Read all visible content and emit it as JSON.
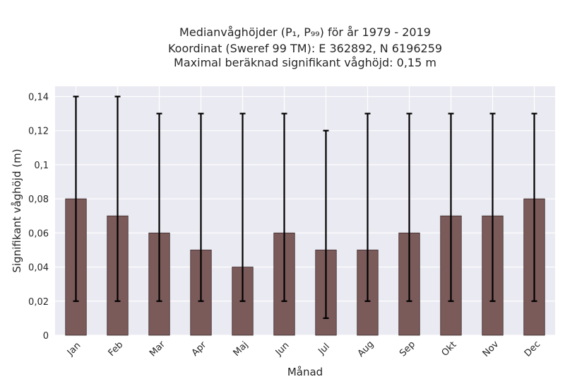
{
  "chart_data": {
    "type": "bar",
    "title_lines": [
      "Medianvåghöjder (P₁, P₉₉) för år 1979 - 2019",
      "Koordinat (Sweref 99 TM): E 362892, N 6196259",
      "Maximal beräknad signifikant våghöjd: 0,15 m"
    ],
    "xlabel": "Månad",
    "ylabel": "Signifikant våghöjd (m)",
    "categories": [
      "Jan",
      "Feb",
      "Mar",
      "Apr",
      "Maj",
      "Jun",
      "Jul",
      "Aug",
      "Sep",
      "Okt",
      "Nov",
      "Dec"
    ],
    "values": [
      0.08,
      0.07,
      0.06,
      0.05,
      0.04,
      0.06,
      0.05,
      0.05,
      0.06,
      0.07,
      0.07,
      0.08
    ],
    "error_low": [
      0.02,
      0.02,
      0.02,
      0.02,
      0.02,
      0.02,
      0.01,
      0.02,
      0.02,
      0.02,
      0.02,
      0.02
    ],
    "error_high": [
      0.14,
      0.14,
      0.13,
      0.13,
      0.13,
      0.13,
      0.12,
      0.13,
      0.13,
      0.13,
      0.13,
      0.13
    ],
    "ylim": [
      0,
      0.146
    ],
    "yticks": [
      0,
      0.02,
      0.04,
      0.06,
      0.08,
      0.1,
      0.12,
      0.14
    ],
    "ytick_labels": [
      "0",
      "0,02",
      "0,04",
      "0,06",
      "0,08",
      "0,1",
      "0,12",
      "0,14"
    ],
    "grid": true,
    "colors": {
      "bar": "#7b5a5a",
      "bar_edge": "#3a2a2a",
      "errorbar": "#000000",
      "plot_background": "#eaeaf2",
      "grid": "#ffffff"
    }
  }
}
